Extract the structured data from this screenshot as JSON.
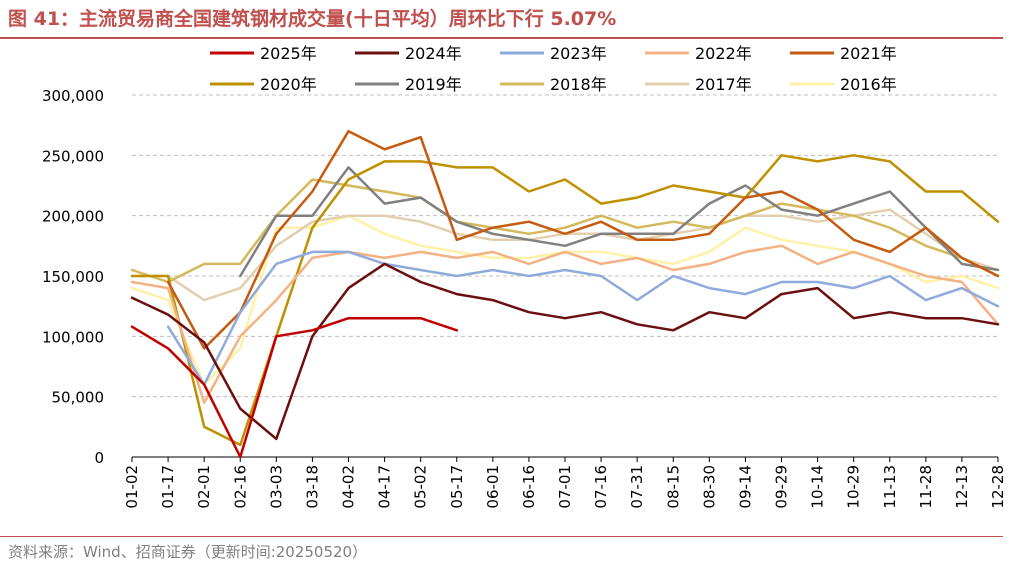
{
  "header": {
    "title": "图 41：主流贸易商全国建筑钢材成交量(十日平均）周环比下行 5.07%"
  },
  "footer": {
    "source": "资料来源：Wind、招商证券（更新时间:20250520）"
  },
  "colors": {
    "accent": "#c0504d",
    "s2025": "#c00000",
    "s2024": "#6b0f0f",
    "s2023": "#8faadc",
    "s2022": "#f4b183",
    "s2021": "#c55a11",
    "s2020": "#bf9000",
    "s2019": "#808080",
    "s2018": "#d4b85c",
    "s2017": "#e2cfae",
    "s2016": "#fff2a8"
  },
  "chart_data": {
    "type": "line",
    "title": "主流贸易商全国建筑钢材成交量(十日平均）",
    "xlabel": "",
    "ylabel": "",
    "x": [
      "01-02",
      "01-17",
      "02-01",
      "02-16",
      "03-03",
      "03-18",
      "04-02",
      "04-17",
      "05-02",
      "05-17",
      "06-01",
      "06-16",
      "07-01",
      "07-16",
      "07-31",
      "08-15",
      "08-30",
      "09-14",
      "09-29",
      "10-14",
      "10-29",
      "11-13",
      "11-28",
      "12-13",
      "12-28"
    ],
    "y_ticks": [
      "0",
      "50,000",
      "100,000",
      "150,000",
      "200,000",
      "250,000",
      "300,000"
    ],
    "ylim": [
      0,
      300000
    ],
    "grid": "horizontal dashed",
    "legend_position": "top",
    "series": [
      {
        "name": "2025年",
        "color": "#c00000",
        "values": [
          108000,
          90000,
          60000,
          0,
          100000,
          105000,
          115000,
          115000,
          115000,
          105000,
          null,
          null,
          null,
          null,
          null,
          null,
          null,
          null,
          null,
          null,
          null,
          null,
          null,
          null,
          null
        ]
      },
      {
        "name": "2024年",
        "color": "#6b0f0f",
        "values": [
          132000,
          118000,
          95000,
          40000,
          15000,
          100000,
          140000,
          160000,
          145000,
          135000,
          130000,
          120000,
          115000,
          120000,
          110000,
          105000,
          120000,
          115000,
          135000,
          140000,
          115000,
          120000,
          115000,
          115000,
          110000
        ]
      },
      {
        "name": "2023年",
        "color": "#8faadc",
        "values": [
          null,
          108000,
          60000,
          120000,
          160000,
          170000,
          170000,
          160000,
          155000,
          150000,
          155000,
          150000,
          155000,
          150000,
          130000,
          150000,
          140000,
          135000,
          145000,
          145000,
          140000,
          150000,
          130000,
          140000,
          125000
        ]
      },
      {
        "name": "2022年",
        "color": "#f4b183",
        "values": [
          145000,
          140000,
          45000,
          100000,
          130000,
          165000,
          170000,
          165000,
          170000,
          165000,
          170000,
          160000,
          170000,
          160000,
          165000,
          155000,
          160000,
          170000,
          175000,
          160000,
          170000,
          160000,
          150000,
          145000,
          110000
        ]
      },
      {
        "name": "2021年",
        "color": "#c55a11",
        "values": [
          null,
          145000,
          90000,
          120000,
          185000,
          220000,
          270000,
          255000,
          265000,
          180000,
          190000,
          195000,
          185000,
          195000,
          180000,
          180000,
          185000,
          215000,
          220000,
          205000,
          180000,
          170000,
          190000,
          165000,
          150000
        ]
      },
      {
        "name": "2020年",
        "color": "#bf9000",
        "values": [
          150000,
          150000,
          25000,
          10000,
          100000,
          190000,
          230000,
          245000,
          245000,
          240000,
          240000,
          220000,
          230000,
          210000,
          215000,
          225000,
          220000,
          215000,
          250000,
          245000,
          250000,
          245000,
          220000,
          220000,
          195000
        ]
      },
      {
        "name": "2019年",
        "color": "#808080",
        "values": [
          null,
          null,
          null,
          150000,
          200000,
          200000,
          240000,
          210000,
          215000,
          195000,
          185000,
          180000,
          175000,
          185000,
          185000,
          185000,
          210000,
          225000,
          205000,
          200000,
          210000,
          220000,
          190000,
          160000,
          155000
        ]
      },
      {
        "name": "2018年",
        "color": "#d4b85c",
        "values": [
          155000,
          145000,
          160000,
          160000,
          200000,
          230000,
          225000,
          220000,
          215000,
          195000,
          190000,
          185000,
          190000,
          200000,
          190000,
          195000,
          190000,
          200000,
          210000,
          205000,
          200000,
          190000,
          175000,
          165000,
          150000
        ]
      },
      {
        "name": "2017年",
        "color": "#e2cfae",
        "values": [
          150000,
          150000,
          130000,
          140000,
          175000,
          195000,
          200000,
          200000,
          195000,
          185000,
          180000,
          180000,
          185000,
          185000,
          180000,
          185000,
          190000,
          200000,
          200000,
          195000,
          200000,
          205000,
          185000,
          165000,
          155000
        ]
      },
      {
        "name": "2016年",
        "color": "#fff2a8",
        "values": [
          140000,
          130000,
          60000,
          90000,
          190000,
          190000,
          200000,
          185000,
          175000,
          170000,
          165000,
          165000,
          170000,
          170000,
          165000,
          160000,
          170000,
          190000,
          180000,
          175000,
          170000,
          160000,
          145000,
          150000,
          140000
        ]
      }
    ]
  }
}
